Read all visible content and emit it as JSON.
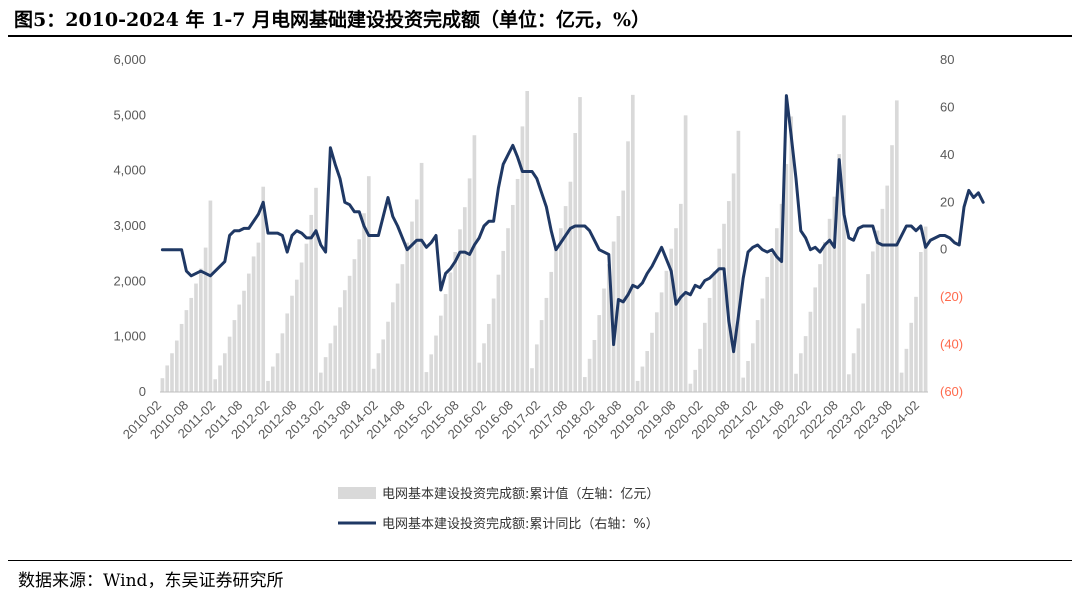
{
  "page": {
    "title": "图5：2010-2024 年 1-7 月电网基础建设投资完成额（单位：亿元，%）",
    "source": "数据来源：Wind，东吴证券研究所"
  },
  "chart_data": {
    "type": "bar+line",
    "title": "图5：2010-2024 年 1-7 月电网基础建设投资完成额（单位：亿元，%）",
    "x_tick_labels": [
      "2010-02",
      "2010-08",
      "2011-02",
      "2011-08",
      "2012-02",
      "2012-08",
      "2013-02",
      "2013-08",
      "2014-02",
      "2014-08",
      "2015-02",
      "2015-08",
      "2016-02",
      "2016-08",
      "2017-02",
      "2017-08",
      "2018-02",
      "2018-08",
      "2019-02",
      "2019-08",
      "2020-02",
      "2020-08",
      "2021-02",
      "2021-08",
      "2022-02",
      "2022-08",
      "2023-02",
      "2023-08",
      "2024-02"
    ],
    "y_left": {
      "range": [
        0,
        6000
      ],
      "ticks": [
        0,
        1000,
        2000,
        3000,
        4000,
        5000,
        6000
      ],
      "tick_labels": [
        "0",
        "1,000",
        "2,000",
        "3,000",
        "4,000",
        "5,000",
        "6,000"
      ]
    },
    "y_right": {
      "range": [
        -60,
        80
      ],
      "ticks": [
        -60,
        -40,
        -20,
        0,
        20,
        40,
        60,
        80
      ],
      "tick_labels": [
        "(60)",
        "(40)",
        "(20)",
        "0",
        "20",
        "40",
        "60",
        "80"
      ],
      "negative_color": "#ff6a4d"
    },
    "grid": false,
    "legend_position": "bottom-center",
    "colors": {
      "bar": "#d9d9d9",
      "line": "#1f3864"
    },
    "series": [
      {
        "name": "电网基本建设投资完成额:累计值（左轴：亿元）",
        "type": "bar",
        "axis": "left",
        "years": [
          {
            "year": 2010,
            "values": [
              250,
              480,
              700,
              930,
              1230,
              1480,
              1700,
              1960,
              2230,
              2610,
              3460
            ]
          },
          {
            "year": 2011,
            "values": [
              230,
              480,
              700,
              1000,
              1300,
              1580,
              1830,
              2140,
              2450,
              2700,
              3710
            ]
          },
          {
            "year": 2012,
            "values": [
              200,
              460,
              700,
              1060,
              1420,
              1740,
              2030,
              2340,
              2680,
              3200,
              3690
            ]
          },
          {
            "year": 2013,
            "values": [
              350,
              630,
              880,
              1200,
              1530,
              1840,
              2100,
              2400,
              2760,
              3230,
              3900
            ]
          },
          {
            "year": 2014,
            "values": [
              420,
              700,
              950,
              1270,
              1620,
              1960,
              2310,
              2700,
              3080,
              3480,
              4140
            ]
          },
          {
            "year": 2015,
            "values": [
              360,
              680,
              1020,
              1380,
              1770,
              2160,
              2530,
              2940,
              3340,
              3860,
              4640
            ]
          },
          {
            "year": 2016,
            "values": [
              530,
              880,
              1230,
              1690,
              2120,
              2550,
              2960,
              3380,
              3850,
              4800,
              5440
            ]
          },
          {
            "year": 2017,
            "values": [
              430,
              860,
              1300,
              1700,
              2170,
              2590,
              2960,
              3360,
              3800,
              4680,
              5330
            ]
          },
          {
            "year": 2018,
            "values": [
              270,
              600,
              940,
              1390,
              1870,
              2310,
              2720,
              3180,
              3640,
              4530,
              5370
            ]
          },
          {
            "year": 2019,
            "values": [
              200,
              460,
              740,
              1070,
              1440,
              1800,
              2190,
              2590,
              2960,
              3400,
              5000
            ]
          },
          {
            "year": 2020,
            "values": [
              150,
              400,
              780,
              1250,
              1700,
              2180,
              2590,
              3040,
              3450,
              3950,
              4720
            ]
          },
          {
            "year": 2021,
            "values": [
              260,
              560,
              880,
              1300,
              1690,
              2080,
              2510,
              2960,
              3400,
              4120,
              4980
            ]
          },
          {
            "year": 2022,
            "values": [
              330,
              700,
              1010,
              1450,
              1890,
              2310,
              2710,
              3130,
              3530,
              4300,
              5000
            ]
          },
          {
            "year": 2023,
            "values": [
              320,
              700,
              1150,
              1600,
              2130,
              2540,
              2920,
              3310,
              3730,
              4460,
              5270
            ]
          },
          {
            "year": 2024,
            "values": [
              350,
              780,
              1250,
              1720,
              2530,
              2990
            ]
          }
        ]
      },
      {
        "name": "电网基本建设投资完成额:累计同比（右轴：%）",
        "type": "line",
        "axis": "right",
        "values": [
          0,
          0,
          0,
          0,
          0,
          -9,
          -11,
          -10,
          -9,
          -10,
          -11,
          -9,
          -7,
          -5,
          6,
          8,
          8,
          9,
          9,
          12,
          15,
          20,
          7,
          7,
          7,
          6,
          -1,
          6,
          8,
          7,
          5,
          5,
          8,
          2,
          -1,
          43,
          36,
          30,
          20,
          19,
          16,
          16,
          10,
          6,
          6,
          6,
          14,
          22,
          14,
          10,
          5,
          0,
          2,
          4,
          4,
          1,
          3,
          6,
          -17,
          -10,
          -8,
          -5,
          -1,
          -1,
          -2,
          2,
          5,
          10,
          12,
          12,
          26,
          36,
          40,
          44,
          39,
          33,
          33,
          33,
          30,
          24,
          18,
          8,
          0,
          3,
          6,
          9,
          10,
          10,
          10,
          8,
          4,
          0,
          -1,
          -2,
          -40,
          -21,
          -22,
          -19,
          -15,
          -16,
          -14,
          -10,
          -7,
          -3,
          1,
          -4,
          -9,
          -23,
          -20,
          -18,
          -19,
          -15,
          -16,
          -13,
          -12,
          -10,
          -8,
          -8,
          -30,
          -43,
          -28,
          -12,
          -1,
          1,
          2,
          0,
          -1,
          0,
          -3,
          -5,
          65,
          48,
          30,
          8,
          5,
          0,
          1,
          -1,
          2,
          4,
          1,
          38,
          15,
          5,
          4,
          9,
          10,
          10,
          10,
          3,
          2,
          2,
          2,
          2,
          6,
          10,
          10,
          8,
          10,
          1,
          4,
          5,
          6,
          6,
          5,
          3,
          2,
          18,
          25,
          22,
          24,
          20
        ]
      }
    ]
  }
}
